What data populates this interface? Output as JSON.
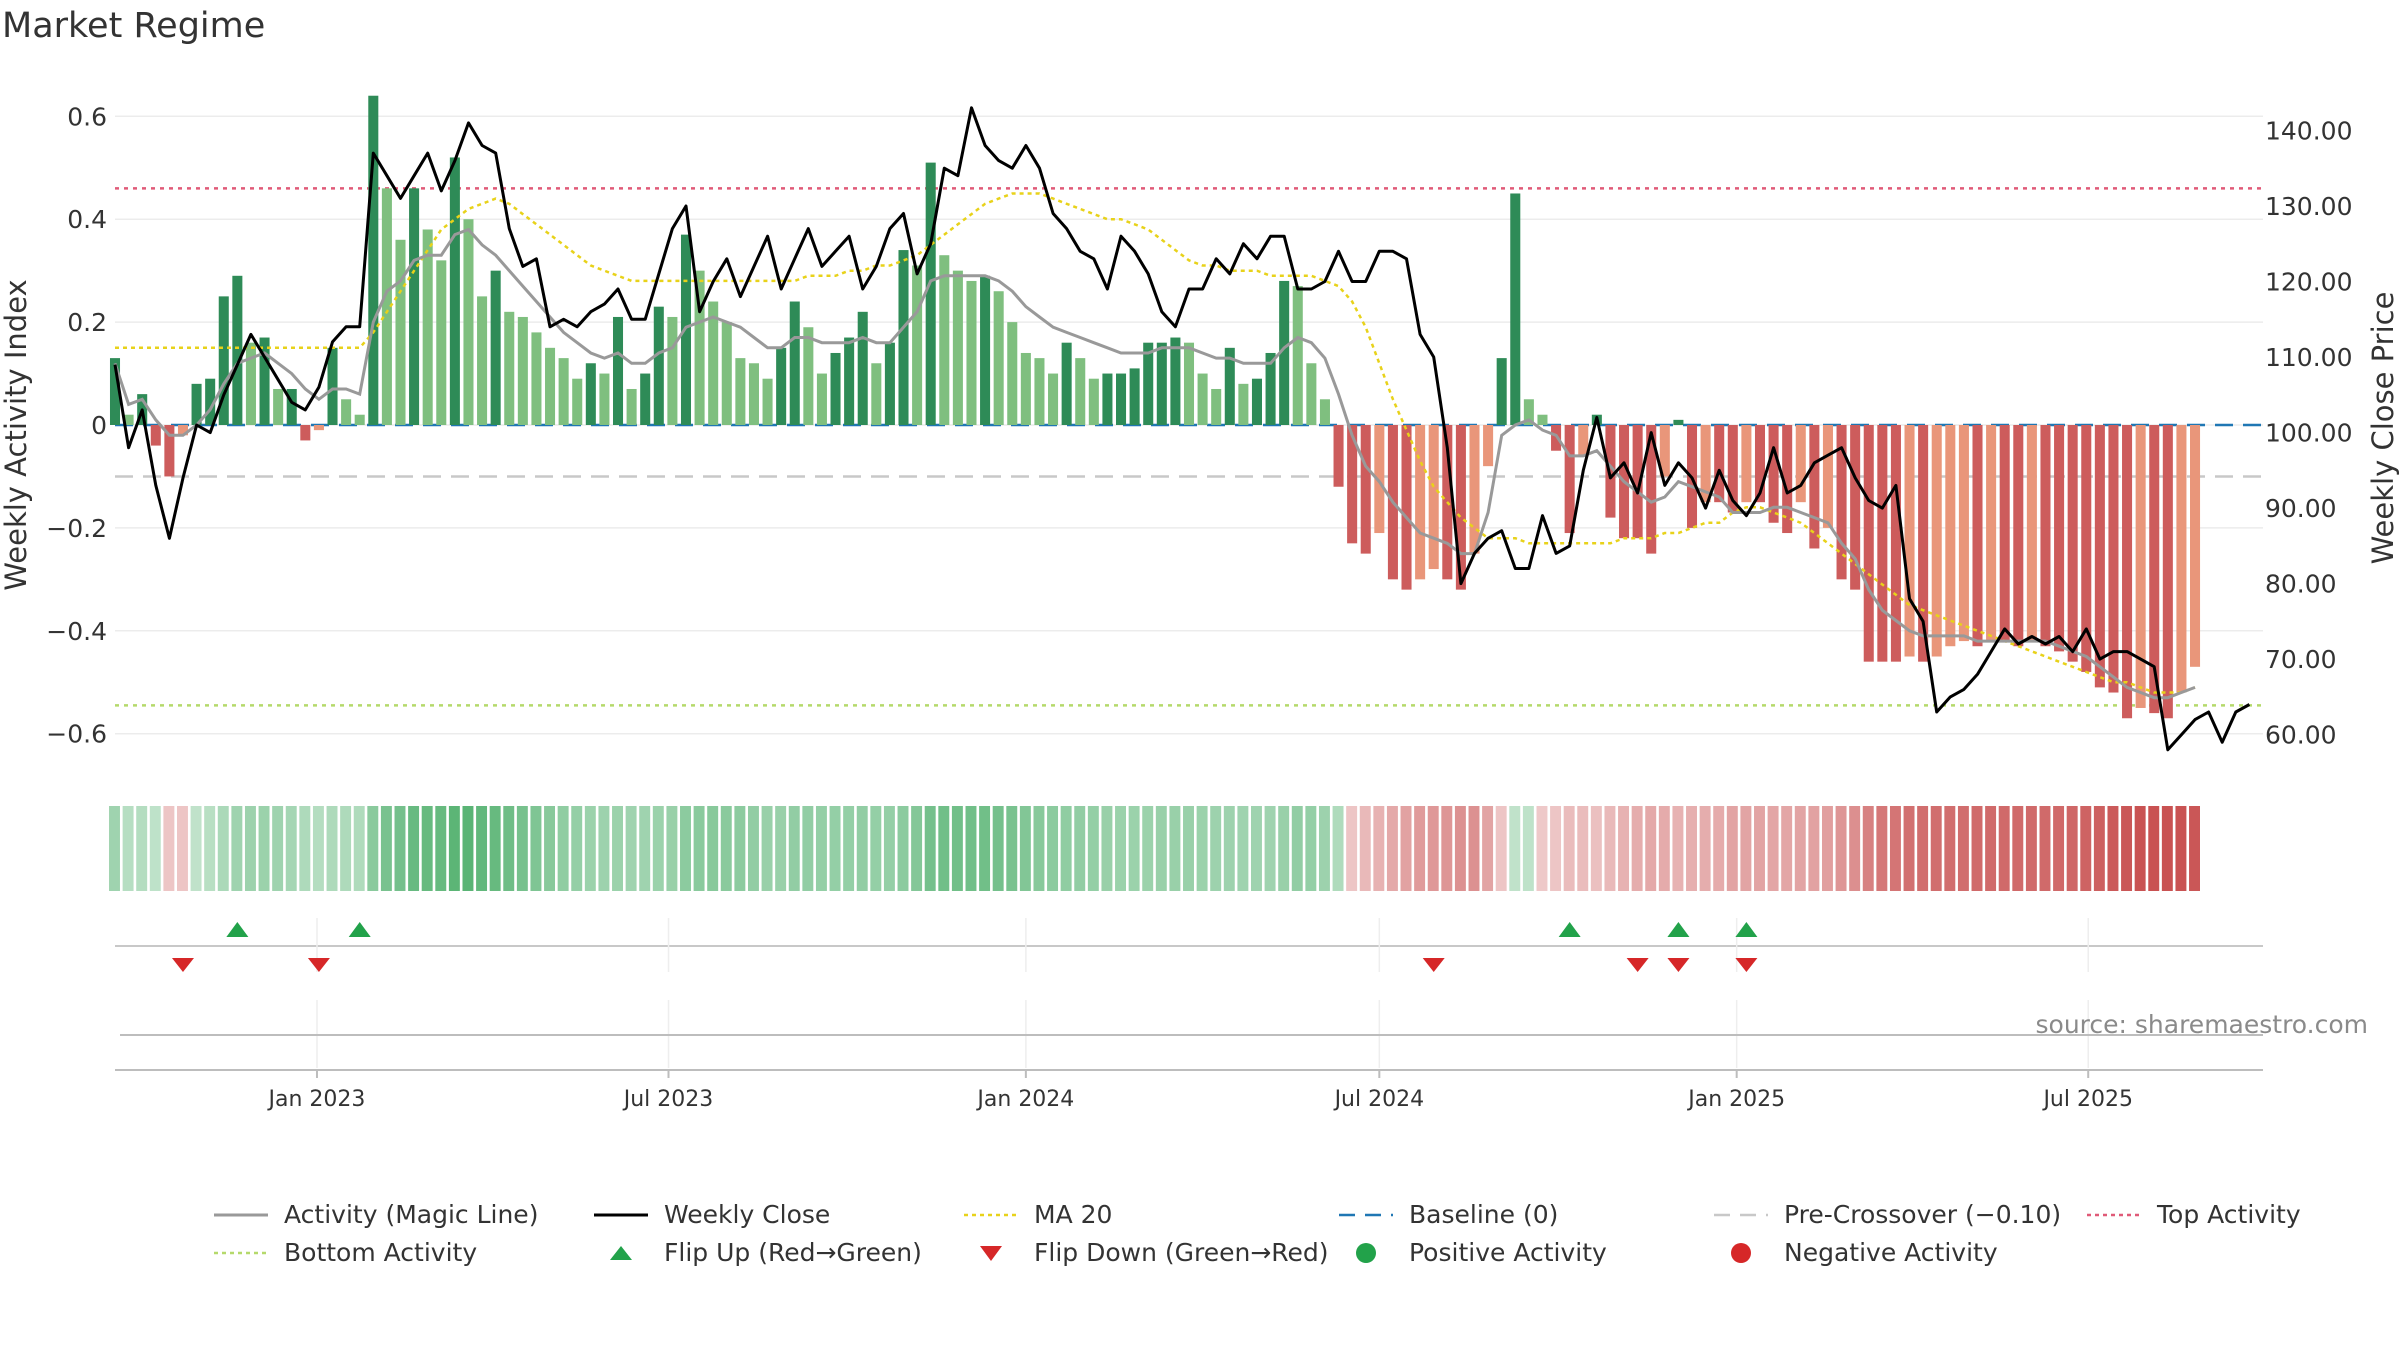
{
  "title": "Market Regime",
  "source": "source: sharemaestro.com",
  "colors": {
    "strong_green": "#2e8b57",
    "light_green": "#7fbf7f",
    "strong_red": "#cd5c5c",
    "light_red": "#e9967a",
    "magic": "#999999",
    "close": "#000000",
    "ma20": "#e8d21a",
    "baseline": "#1f77b4",
    "precross": "#c8c8c8",
    "top": "#e05a78",
    "bottom": "#b5d96b",
    "flip_up": "#22a24a",
    "flip_down": "#d62728"
  },
  "legend": [
    {
      "key": "magic",
      "label": "Activity (Magic Line)",
      "style": "line"
    },
    {
      "key": "close",
      "label": "Weekly Close",
      "style": "line"
    },
    {
      "key": "ma20",
      "label": "MA 20",
      "style": "dotted"
    },
    {
      "key": "baseline",
      "label": "Baseline (0)",
      "style": "dashed"
    },
    {
      "key": "precross",
      "label": "Pre-Crossover (−0.10)",
      "style": "dashed"
    },
    {
      "key": "top",
      "label": "Top Activity",
      "style": "dotted"
    },
    {
      "key": "bottom",
      "label": "Bottom Activity",
      "style": "dotted"
    },
    {
      "key": "flip_up",
      "label": "Flip Up (Red→Green)",
      "style": "tri-up"
    },
    {
      "key": "flip_down",
      "label": "Flip Down (Green→Red)",
      "style": "tri-down"
    },
    {
      "key": "flip_up",
      "label": "Positive Activity",
      "style": "dot"
    },
    {
      "key": "flip_down",
      "label": "Negative Activity",
      "style": "dot"
    }
  ],
  "chart_data": {
    "type": "bar",
    "ylabel_left": "Weekly Activity Index",
    "ylabel_right": "Weekly Close Price",
    "ylim_left": [
      -0.69,
      0.69
    ],
    "ylim_right": [
      54.0,
      148.0
    ],
    "yticks_left": [
      0.6,
      0.4,
      0.2,
      0,
      -0.2,
      -0.4,
      -0.6
    ],
    "yticks_left_labels": [
      "0.6",
      "0.4",
      "0.2",
      "0",
      "−0.2",
      "−0.4",
      "−0.6"
    ],
    "yticks_right": [
      140,
      130,
      120,
      110,
      100,
      90,
      80,
      70,
      60
    ],
    "yticks_right_labels": [
      "140.00",
      "130.00",
      "120.00",
      "110.00",
      "100.00",
      "90.00",
      "80.00",
      "70.00",
      "60.00"
    ],
    "xlim": [
      "2022-09-19",
      "2025-09-29"
    ],
    "xticks": [
      "2023-01-01",
      "2023-07-01",
      "2024-01-01",
      "2024-07-01",
      "2025-01-01",
      "2025-07-01"
    ],
    "xtick_labels": [
      "Jan 2023",
      "Jul 2023",
      "Jan 2024",
      "Jul 2024",
      "Jan 2025",
      "Jul 2025"
    ],
    "first_week": "2022-09-19",
    "reference_lines": {
      "baseline": 0,
      "pre_crossover": -0.1,
      "top_activity": 0.46,
      "bottom_activity": -0.545
    },
    "activity": [
      0.13,
      0.02,
      0.06,
      -0.04,
      -0.1,
      -0.02,
      0.08,
      0.09,
      0.25,
      0.29,
      0.16,
      0.17,
      0.07,
      0.07,
      -0.03,
      -0.01,
      0.15,
      0.05,
      0.02,
      0.64,
      0.46,
      0.36,
      0.46,
      0.38,
      0.32,
      0.52,
      0.4,
      0.25,
      0.3,
      0.22,
      0.21,
      0.18,
      0.15,
      0.13,
      0.09,
      0.12,
      0.1,
      0.21,
      0.07,
      0.1,
      0.23,
      0.21,
      0.37,
      0.3,
      0.24,
      0.2,
      0.13,
      0.12,
      0.09,
      0.15,
      0.24,
      0.19,
      0.1,
      0.14,
      0.17,
      0.22,
      0.12,
      0.16,
      0.34,
      0.31,
      0.51,
      0.33,
      0.3,
      0.28,
      0.29,
      0.26,
      0.2,
      0.14,
      0.13,
      0.1,
      0.16,
      0.13,
      0.09,
      0.1,
      0.1,
      0.11,
      0.16,
      0.16,
      0.17,
      0.16,
      0.1,
      0.07,
      0.15,
      0.08,
      0.09,
      0.14,
      0.28,
      0.27,
      0.12,
      0.05,
      -0.12,
      -0.23,
      -0.25,
      -0.21,
      -0.3,
      -0.32,
      -0.3,
      -0.28,
      -0.3,
      -0.32,
      -0.25,
      -0.08,
      0.13,
      0.45,
      0.05,
      0.02,
      -0.05,
      -0.21,
      -0.06,
      0.02,
      -0.18,
      -0.22,
      -0.22,
      -0.25,
      -0.1,
      0.01,
      -0.2,
      -0.15,
      -0.15,
      -0.17,
      -0.15,
      -0.15,
      -0.19,
      -0.21,
      -0.15,
      -0.24,
      -0.2,
      -0.3,
      -0.32,
      -0.46,
      -0.46,
      -0.46,
      -0.45,
      -0.46,
      -0.45,
      -0.43,
      -0.42,
      -0.43,
      -0.42,
      -0.42,
      -0.43,
      -0.42,
      -0.43,
      -0.44,
      -0.46,
      -0.48,
      -0.51,
      -0.52,
      -0.57,
      -0.55,
      -0.56,
      -0.57,
      -0.52,
      -0.47
    ],
    "magic_line": [
      0.12,
      0.04,
      0.05,
      0.01,
      -0.02,
      -0.02,
      0.0,
      0.03,
      0.08,
      0.12,
      0.13,
      0.14,
      0.12,
      0.1,
      0.07,
      0.05,
      0.07,
      0.07,
      0.06,
      0.2,
      0.26,
      0.28,
      0.32,
      0.33,
      0.33,
      0.37,
      0.38,
      0.35,
      0.33,
      0.3,
      0.27,
      0.24,
      0.21,
      0.18,
      0.16,
      0.14,
      0.13,
      0.14,
      0.12,
      0.12,
      0.14,
      0.15,
      0.19,
      0.2,
      0.21,
      0.2,
      0.19,
      0.17,
      0.15,
      0.15,
      0.17,
      0.17,
      0.16,
      0.16,
      0.16,
      0.17,
      0.16,
      0.16,
      0.19,
      0.22,
      0.28,
      0.29,
      0.29,
      0.29,
      0.29,
      0.28,
      0.26,
      0.23,
      0.21,
      0.19,
      0.18,
      0.17,
      0.16,
      0.15,
      0.14,
      0.14,
      0.14,
      0.15,
      0.15,
      0.15,
      0.14,
      0.13,
      0.13,
      0.12,
      0.12,
      0.12,
      0.15,
      0.17,
      0.16,
      0.13,
      0.06,
      -0.02,
      -0.08,
      -0.11,
      -0.15,
      -0.18,
      -0.21,
      -0.22,
      -0.23,
      -0.25,
      -0.25,
      -0.17,
      -0.02,
      0.0,
      0.01,
      -0.01,
      -0.02,
      -0.06,
      -0.06,
      -0.05,
      -0.08,
      -0.11,
      -0.13,
      -0.15,
      -0.14,
      -0.11,
      -0.12,
      -0.13,
      -0.14,
      -0.17,
      -0.17,
      -0.17,
      -0.16,
      -0.16,
      -0.17,
      -0.18,
      -0.19,
      -0.23,
      -0.26,
      -0.32,
      -0.36,
      -0.38,
      -0.4,
      -0.41,
      -0.41,
      -0.41,
      -0.41,
      -0.42,
      -0.42,
      -0.42,
      -0.42,
      -0.42,
      -0.42,
      -0.43,
      -0.44,
      -0.45,
      -0.47,
      -0.49,
      -0.51,
      -0.52,
      -0.53,
      -0.53,
      -0.52,
      -0.51
    ],
    "ma20": [
      0.15,
      0.15,
      0.15,
      0.15,
      0.15,
      0.15,
      0.15,
      0.15,
      0.15,
      0.15,
      0.15,
      0.15,
      0.15,
      0.15,
      0.15,
      0.15,
      0.15,
      0.15,
      0.15,
      0.18,
      0.22,
      0.26,
      0.3,
      0.34,
      0.38,
      0.4,
      0.42,
      0.43,
      0.44,
      0.43,
      0.41,
      0.39,
      0.37,
      0.35,
      0.33,
      0.31,
      0.3,
      0.29,
      0.28,
      0.28,
      0.28,
      0.28,
      0.28,
      0.28,
      0.28,
      0.28,
      0.28,
      0.28,
      0.28,
      0.28,
      0.28,
      0.29,
      0.29,
      0.29,
      0.3,
      0.3,
      0.31,
      0.31,
      0.32,
      0.33,
      0.35,
      0.37,
      0.39,
      0.41,
      0.43,
      0.44,
      0.45,
      0.45,
      0.45,
      0.44,
      0.43,
      0.42,
      0.41,
      0.4,
      0.4,
      0.39,
      0.38,
      0.36,
      0.34,
      0.32,
      0.31,
      0.31,
      0.3,
      0.3,
      0.3,
      0.29,
      0.29,
      0.29,
      0.29,
      0.28,
      0.27,
      0.24,
      0.19,
      0.12,
      0.05,
      -0.01,
      -0.07,
      -0.12,
      -0.15,
      -0.18,
      -0.2,
      -0.22,
      -0.22,
      -0.22,
      -0.23,
      -0.23,
      -0.23,
      -0.23,
      -0.23,
      -0.23,
      -0.23,
      -0.22,
      -0.22,
      -0.22,
      -0.21,
      -0.21,
      -0.2,
      -0.19,
      -0.19,
      -0.17,
      -0.16,
      -0.16,
      -0.17,
      -0.18,
      -0.19,
      -0.21,
      -0.23,
      -0.25,
      -0.27,
      -0.29,
      -0.31,
      -0.33,
      -0.35,
      -0.36,
      -0.37,
      -0.38,
      -0.39,
      -0.4,
      -0.41,
      -0.42,
      -0.43,
      -0.44,
      -0.45,
      -0.46,
      -0.47,
      -0.48,
      -0.49,
      -0.5,
      -0.5,
      -0.51,
      -0.52,
      -0.52,
      -0.52,
      -0.51
    ],
    "weekly_close": [
      109,
      98,
      103,
      93,
      86,
      94,
      101,
      100,
      105,
      109,
      113,
      110,
      107,
      104,
      103,
      106,
      112,
      114,
      114,
      137,
      134,
      131,
      134,
      137,
      132,
      136,
      141,
      138,
      137,
      127,
      122,
      123,
      114,
      115,
      114,
      116,
      117,
      119,
      115,
      115,
      121,
      127,
      130,
      116,
      120,
      123,
      118,
      122,
      126,
      119,
      123,
      127,
      122,
      124,
      126,
      119,
      122,
      127,
      129,
      121,
      125,
      135,
      134,
      143,
      138,
      136,
      135,
      138,
      135,
      129,
      127,
      124,
      123,
      119,
      126,
      124,
      121,
      116,
      114,
      119,
      119,
      123,
      121,
      125,
      123,
      126,
      126,
      119,
      119,
      120,
      124,
      120,
      120,
      124,
      124,
      123,
      113,
      110,
      98,
      80,
      84,
      86,
      87,
      82,
      82,
      89,
      84,
      85,
      95,
      102,
      94,
      96,
      92,
      100,
      93,
      96,
      94,
      90,
      95,
      91,
      89,
      92,
      98,
      92,
      93,
      96,
      97,
      98,
      94,
      91,
      90,
      93,
      78,
      75,
      63,
      65,
      66,
      68,
      71,
      74,
      72,
      73,
      72,
      73,
      71,
      74,
      70,
      71,
      71,
      70,
      69,
      58,
      60,
      62,
      63,
      59,
      63,
      64
    ],
    "flip_up_dates": [
      "2022-11-21",
      "2023-01-23",
      "2024-10-07",
      "2024-12-02",
      "2025-01-06"
    ],
    "flip_down_dates": [
      "2022-10-24",
      "2023-01-02",
      "2024-07-29",
      "2024-11-11",
      "2024-12-02",
      "2025-01-06"
    ]
  }
}
